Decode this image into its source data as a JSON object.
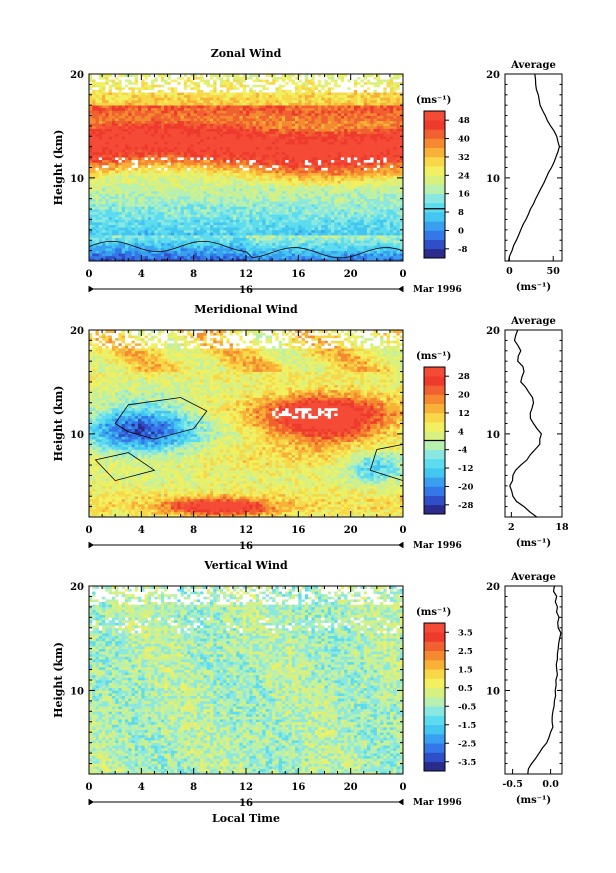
{
  "figure": {
    "x_axis_label": "Local Time",
    "y_axis_label": "Height (km)",
    "average_title": "Average",
    "unit_label": "(ms⁻¹)",
    "date_label": "Mar 1996",
    "day_marker": "16"
  },
  "chart_data": [
    {
      "type": "heatmap",
      "title": "Zonal Wind",
      "xlabel": "",
      "ylabel": "Height (km)",
      "x_ticks": [
        "0",
        "4",
        "8",
        "12",
        "16",
        "20",
        "0"
      ],
      "xlim": [
        0,
        24
      ],
      "y_ticks": [
        "10",
        "20"
      ],
      "ylim": [
        2,
        20
      ],
      "grid": false,
      "colorbar": {
        "label": "(ms⁻¹)",
        "ticks": [
          "48",
          "40",
          "32",
          "24",
          "16",
          "8",
          "0",
          "-8"
        ],
        "min": -12,
        "max": 52
      },
      "profile": {
        "title": "Average",
        "x_ticks": [
          "0",
          "50"
        ],
        "xlim": [
          -5,
          60
        ],
        "xlabel": "(ms⁻¹)",
        "height": [
          2,
          3,
          4,
          5,
          6,
          7,
          8,
          9,
          10,
          11,
          12,
          13,
          14,
          15,
          16,
          17,
          18,
          19,
          20
        ],
        "values": [
          -1,
          3,
          8,
          13,
          19,
          24,
          30,
          36,
          42,
          48,
          53,
          57,
          54,
          47,
          41,
          35,
          33,
          30,
          29
        ]
      },
      "field": {
        "desc": "zonal",
        "jet_center_km": 13.5,
        "jet_speed": 52,
        "surface_speed": -5
      }
    },
    {
      "type": "heatmap",
      "title": "Meridional Wind",
      "xlabel": "",
      "ylabel": "Height (km)",
      "x_ticks": [
        "0",
        "4",
        "8",
        "12",
        "16",
        "20",
        "0"
      ],
      "xlim": [
        0,
        24
      ],
      "y_ticks": [
        "10",
        "20"
      ],
      "ylim": [
        2,
        20
      ],
      "grid": false,
      "colorbar": {
        "label": "(ms⁻¹)",
        "ticks": [
          "28",
          "20",
          "12",
          "4",
          "-4",
          "-12",
          "-20",
          "-28"
        ],
        "min": -32,
        "max": 32
      },
      "profile": {
        "title": "Average",
        "x_ticks": [
          "2",
          "18"
        ],
        "xlim": [
          0,
          18
        ],
        "xlabel": "(ms⁻¹)",
        "height": [
          2,
          3,
          4,
          5,
          6,
          7,
          8,
          9,
          10,
          11,
          12,
          13,
          14,
          15,
          16,
          17,
          18,
          19,
          20
        ],
        "values": [
          10,
          6,
          2.5,
          1.5,
          2.5,
          5,
          8,
          11,
          11.5,
          9,
          8,
          9,
          7.5,
          5,
          6,
          4,
          5,
          3,
          4
        ]
      },
      "field": {
        "desc": "meridional"
      }
    },
    {
      "type": "heatmap",
      "title": "Vertical Wind",
      "xlabel": "Local Time",
      "ylabel": "Height (km)",
      "x_ticks": [
        "0",
        "4",
        "8",
        "12",
        "16",
        "20",
        "0"
      ],
      "xlim": [
        0,
        24
      ],
      "y_ticks": [
        "10",
        "20"
      ],
      "ylim": [
        2,
        20
      ],
      "grid": false,
      "colorbar": {
        "label": "(ms⁻¹)",
        "ticks": [
          "3.5",
          "2.5",
          "1.5",
          "0.5",
          "-0.5",
          "-1.5",
          "-2.5",
          "-3.5"
        ],
        "min": -4,
        "max": 4
      },
      "profile": {
        "title": "Average",
        "x_ticks": [
          "-0.5",
          "0.0"
        ],
        "xlim": [
          -0.6,
          0.15
        ],
        "xlabel": "(ms⁻¹)",
        "height": [
          2,
          3,
          4,
          5,
          6,
          7,
          8,
          9,
          10,
          11,
          12,
          13,
          14,
          15,
          16,
          17,
          18,
          19,
          20
        ],
        "values": [
          -0.3,
          -0.25,
          -0.15,
          -0.05,
          0.0,
          0.02,
          0.03,
          0.05,
          0.06,
          0.07,
          0.08,
          0.09,
          0.1,
          0.12,
          0.1,
          0.11,
          0.09,
          0.08,
          0.05
        ]
      },
      "field": {
        "desc": "vertical"
      }
    }
  ]
}
